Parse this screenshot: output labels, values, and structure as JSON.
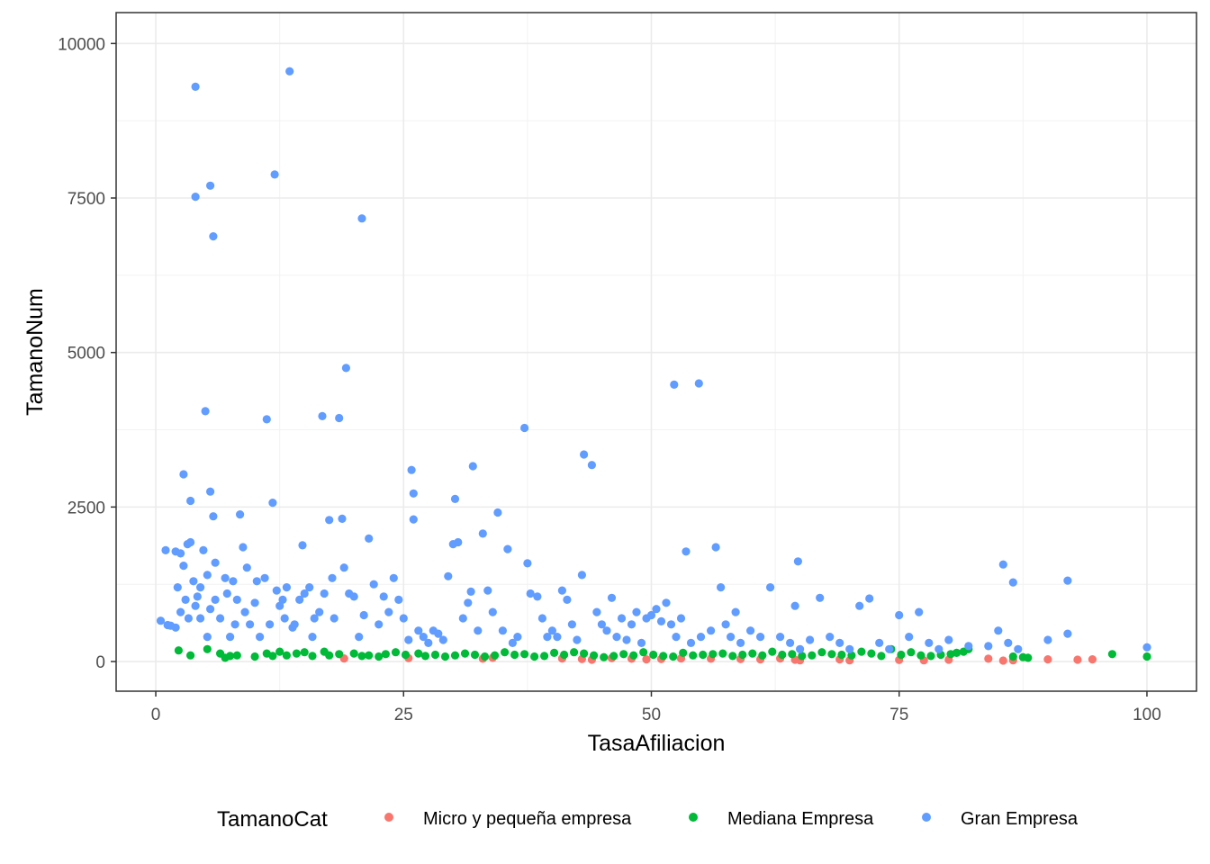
{
  "chart_data": {
    "type": "scatter",
    "title": "",
    "xlabel": "TasaAfiliacion",
    "ylabel": "TamanoNum",
    "xlim": [
      -4,
      105
    ],
    "ylim": [
      -480,
      10500
    ],
    "x_ticks": [
      0,
      25,
      50,
      75,
      100
    ],
    "x_tick_labels": [
      "0",
      "25",
      "50",
      "75",
      "100"
    ],
    "y_ticks": [
      0,
      2500,
      5000,
      7500,
      10000
    ],
    "y_tick_labels": [
      "0",
      "2500",
      "5000",
      "7500",
      "10000"
    ],
    "grid": true,
    "legend": {
      "title": "TamanoCat",
      "position": "bottom"
    },
    "series": [
      {
        "name": "Micro y pequeña empresa",
        "color": "#F8766D",
        "points": [
          [
            19,
            50
          ],
          [
            25.5,
            55
          ],
          [
            33,
            45
          ],
          [
            34,
            60
          ],
          [
            41,
            50
          ],
          [
            43,
            40
          ],
          [
            44,
            30
          ],
          [
            46,
            55
          ],
          [
            48,
            45
          ],
          [
            49.5,
            35
          ],
          [
            51,
            40
          ],
          [
            53,
            50
          ],
          [
            56,
            45
          ],
          [
            59,
            40
          ],
          [
            61,
            35
          ],
          [
            63,
            50
          ],
          [
            64.5,
            30
          ],
          [
            65,
            20
          ],
          [
            69,
            35
          ],
          [
            70,
            20
          ],
          [
            75,
            25
          ],
          [
            77.5,
            20
          ],
          [
            80,
            30
          ],
          [
            84,
            45
          ],
          [
            85.5,
            15
          ],
          [
            86.5,
            20
          ],
          [
            90,
            35
          ],
          [
            93,
            30
          ],
          [
            94.5,
            35
          ]
        ]
      },
      {
        "name": "Mediana Empresa",
        "color": "#00BA38",
        "points": [
          [
            2.3,
            180
          ],
          [
            3.5,
            100
          ],
          [
            5.2,
            200
          ],
          [
            6.5,
            130
          ],
          [
            7,
            60
          ],
          [
            7.5,
            90
          ],
          [
            8.2,
            100
          ],
          [
            10,
            80
          ],
          [
            11.2,
            130
          ],
          [
            11.8,
            90
          ],
          [
            12.5,
            160
          ],
          [
            13.2,
            100
          ],
          [
            14.2,
            130
          ],
          [
            15,
            150
          ],
          [
            15.8,
            90
          ],
          [
            17,
            160
          ],
          [
            17.5,
            100
          ],
          [
            18.5,
            120
          ],
          [
            20,
            130
          ],
          [
            20.8,
            90
          ],
          [
            21.5,
            100
          ],
          [
            22.5,
            80
          ],
          [
            23.2,
            120
          ],
          [
            24.2,
            150
          ],
          [
            25.2,
            110
          ],
          [
            26.5,
            130
          ],
          [
            27.2,
            90
          ],
          [
            28.2,
            110
          ],
          [
            29.2,
            80
          ],
          [
            30.2,
            100
          ],
          [
            31.2,
            130
          ],
          [
            32.2,
            110
          ],
          [
            33.2,
            80
          ],
          [
            34.2,
            100
          ],
          [
            35.2,
            150
          ],
          [
            36.2,
            110
          ],
          [
            37.2,
            120
          ],
          [
            38.2,
            80
          ],
          [
            39.2,
            90
          ],
          [
            40.2,
            140
          ],
          [
            41.2,
            110
          ],
          [
            42.2,
            150
          ],
          [
            43.2,
            130
          ],
          [
            44.2,
            100
          ],
          [
            45.2,
            70
          ],
          [
            46.2,
            90
          ],
          [
            47.2,
            120
          ],
          [
            48.2,
            100
          ],
          [
            49.2,
            150
          ],
          [
            50.2,
            110
          ],
          [
            51.2,
            90
          ],
          [
            52.2,
            80
          ],
          [
            53.2,
            140
          ],
          [
            54.2,
            100
          ],
          [
            55.2,
            110
          ],
          [
            56.2,
            120
          ],
          [
            57.2,
            130
          ],
          [
            58.2,
            90
          ],
          [
            59.2,
            110
          ],
          [
            60.2,
            130
          ],
          [
            61.2,
            100
          ],
          [
            62.2,
            160
          ],
          [
            63.2,
            110
          ],
          [
            64.2,
            120
          ],
          [
            65.2,
            90
          ],
          [
            66.2,
            100
          ],
          [
            67.2,
            150
          ],
          [
            68.2,
            120
          ],
          [
            69.2,
            110
          ],
          [
            70.2,
            100
          ],
          [
            71.2,
            160
          ],
          [
            72.2,
            130
          ],
          [
            73.2,
            90
          ],
          [
            74.2,
            200
          ],
          [
            75.2,
            110
          ],
          [
            76.2,
            150
          ],
          [
            77.2,
            100
          ],
          [
            78.2,
            90
          ],
          [
            79.2,
            110
          ],
          [
            80.2,
            120
          ],
          [
            80.8,
            140
          ],
          [
            81.5,
            160
          ],
          [
            82,
            200
          ],
          [
            86.5,
            80
          ],
          [
            87.5,
            70
          ],
          [
            88,
            60
          ],
          [
            96.5,
            120
          ],
          [
            100,
            80
          ]
        ]
      },
      {
        "name": "Gran Empresa",
        "color": "#619CFF",
        "points": [
          [
            0.5,
            660
          ],
          [
            1,
            1800
          ],
          [
            1.2,
            590
          ],
          [
            1.5,
            580
          ],
          [
            2,
            550
          ],
          [
            2,
            1780
          ],
          [
            2.2,
            1200
          ],
          [
            2.5,
            1750
          ],
          [
            2.5,
            800
          ],
          [
            2.8,
            1550
          ],
          [
            2.8,
            3030
          ],
          [
            3,
            1000
          ],
          [
            3.2,
            1900
          ],
          [
            3.3,
            700
          ],
          [
            3.5,
            2600
          ],
          [
            3.5,
            1930
          ],
          [
            3.8,
            1300
          ],
          [
            4,
            900
          ],
          [
            4,
            9300
          ],
          [
            4,
            7520
          ],
          [
            4.2,
            1050
          ],
          [
            4.5,
            1200
          ],
          [
            4.5,
            700
          ],
          [
            4.8,
            1800
          ],
          [
            5,
            4050
          ],
          [
            5.2,
            1400
          ],
          [
            5.2,
            400
          ],
          [
            5.5,
            7700
          ],
          [
            5.5,
            2750
          ],
          [
            5.5,
            850
          ],
          [
            5.8,
            6880
          ],
          [
            5.8,
            2350
          ],
          [
            6,
            1600
          ],
          [
            6,
            1000
          ],
          [
            6.5,
            700
          ],
          [
            7,
            1350
          ],
          [
            7.2,
            1100
          ],
          [
            7.5,
            400
          ],
          [
            7.8,
            1300
          ],
          [
            8,
            600
          ],
          [
            8.2,
            1000
          ],
          [
            8.5,
            2380
          ],
          [
            8.8,
            1850
          ],
          [
            9,
            800
          ],
          [
            9.2,
            1520
          ],
          [
            9.5,
            600
          ],
          [
            10,
            950
          ],
          [
            10.2,
            1300
          ],
          [
            10.5,
            400
          ],
          [
            11,
            1350
          ],
          [
            11.2,
            3920
          ],
          [
            11.5,
            600
          ],
          [
            11.8,
            2570
          ],
          [
            12,
            7880
          ],
          [
            12.2,
            1150
          ],
          [
            12.5,
            900
          ],
          [
            12.8,
            1000
          ],
          [
            13,
            700
          ],
          [
            13.2,
            1200
          ],
          [
            13.5,
            9550
          ],
          [
            13.8,
            550
          ],
          [
            14,
            600
          ],
          [
            14.5,
            1000
          ],
          [
            14.8,
            1880
          ],
          [
            15,
            1100
          ],
          [
            15.5,
            1200
          ],
          [
            15.8,
            400
          ],
          [
            16,
            700
          ],
          [
            16.5,
            800
          ],
          [
            16.8,
            3970
          ],
          [
            17,
            1100
          ],
          [
            17.5,
            2290
          ],
          [
            17.8,
            1350
          ],
          [
            18,
            700
          ],
          [
            18.5,
            3940
          ],
          [
            18.8,
            2310
          ],
          [
            19,
            1520
          ],
          [
            19.2,
            4750
          ],
          [
            19.5,
            1100
          ],
          [
            20,
            1050
          ],
          [
            20.5,
            400
          ],
          [
            20.8,
            7170
          ],
          [
            21,
            750
          ],
          [
            21.5,
            1990
          ],
          [
            22,
            1250
          ],
          [
            22.5,
            600
          ],
          [
            23,
            1050
          ],
          [
            23.5,
            800
          ],
          [
            24,
            1350
          ],
          [
            24.5,
            1000
          ],
          [
            25,
            700
          ],
          [
            25.5,
            350
          ],
          [
            25.8,
            3100
          ],
          [
            26,
            2720
          ],
          [
            26,
            2300
          ],
          [
            26.5,
            500
          ],
          [
            27,
            400
          ],
          [
            27.5,
            300
          ],
          [
            28,
            500
          ],
          [
            28.5,
            450
          ],
          [
            29,
            350
          ],
          [
            29.5,
            1380
          ],
          [
            30,
            1900
          ],
          [
            30.2,
            2630
          ],
          [
            30.5,
            1930
          ],
          [
            31,
            700
          ],
          [
            31.5,
            950
          ],
          [
            31.8,
            1130
          ],
          [
            32,
            3160
          ],
          [
            32.5,
            500
          ],
          [
            33,
            2070
          ],
          [
            33.5,
            1150
          ],
          [
            34,
            800
          ],
          [
            34.5,
            2410
          ],
          [
            35,
            500
          ],
          [
            35.5,
            1820
          ],
          [
            36,
            300
          ],
          [
            36.5,
            400
          ],
          [
            37.2,
            3780
          ],
          [
            37.5,
            1590
          ],
          [
            37.8,
            1100
          ],
          [
            38.5,
            1050
          ],
          [
            39,
            700
          ],
          [
            39.5,
            400
          ],
          [
            40,
            500
          ],
          [
            40.5,
            400
          ],
          [
            41,
            1150
          ],
          [
            41.5,
            1000
          ],
          [
            42,
            600
          ],
          [
            42.5,
            350
          ],
          [
            43,
            1400
          ],
          [
            43.2,
            3350
          ],
          [
            44,
            3180
          ],
          [
            44.5,
            800
          ],
          [
            45,
            600
          ],
          [
            45.5,
            500
          ],
          [
            46,
            1030
          ],
          [
            46.5,
            400
          ],
          [
            47,
            700
          ],
          [
            47.5,
            350
          ],
          [
            48,
            600
          ],
          [
            48.5,
            800
          ],
          [
            49,
            300
          ],
          [
            49.5,
            700
          ],
          [
            50,
            750
          ],
          [
            50.5,
            850
          ],
          [
            51,
            650
          ],
          [
            51.5,
            950
          ],
          [
            52,
            600
          ],
          [
            52.3,
            4480
          ],
          [
            52.5,
            400
          ],
          [
            53,
            700
          ],
          [
            53.5,
            1780
          ],
          [
            54,
            300
          ],
          [
            54.8,
            4500
          ],
          [
            55,
            400
          ],
          [
            56,
            500
          ],
          [
            56.5,
            1850
          ],
          [
            57,
            1200
          ],
          [
            57.5,
            600
          ],
          [
            58,
            400
          ],
          [
            58.5,
            800
          ],
          [
            59,
            300
          ],
          [
            60,
            500
          ],
          [
            61,
            400
          ],
          [
            62,
            1200
          ],
          [
            63,
            400
          ],
          [
            64,
            300
          ],
          [
            64.5,
            900
          ],
          [
            64.8,
            1620
          ],
          [
            65,
            200
          ],
          [
            66,
            350
          ],
          [
            67,
            1030
          ],
          [
            68,
            400
          ],
          [
            69,
            300
          ],
          [
            70,
            200
          ],
          [
            71,
            900
          ],
          [
            72,
            1020
          ],
          [
            73,
            300
          ],
          [
            74,
            200
          ],
          [
            75,
            750
          ],
          [
            76,
            400
          ],
          [
            77,
            800
          ],
          [
            78,
            300
          ],
          [
            79,
            200
          ],
          [
            80,
            350
          ],
          [
            82,
            250
          ],
          [
            84,
            250
          ],
          [
            85,
            500
          ],
          [
            85.5,
            1570
          ],
          [
            86,
            300
          ],
          [
            86.5,
            1280
          ],
          [
            87,
            200
          ],
          [
            90,
            350
          ],
          [
            92,
            450
          ],
          [
            92,
            1310
          ],
          [
            100,
            230
          ]
        ]
      }
    ]
  }
}
